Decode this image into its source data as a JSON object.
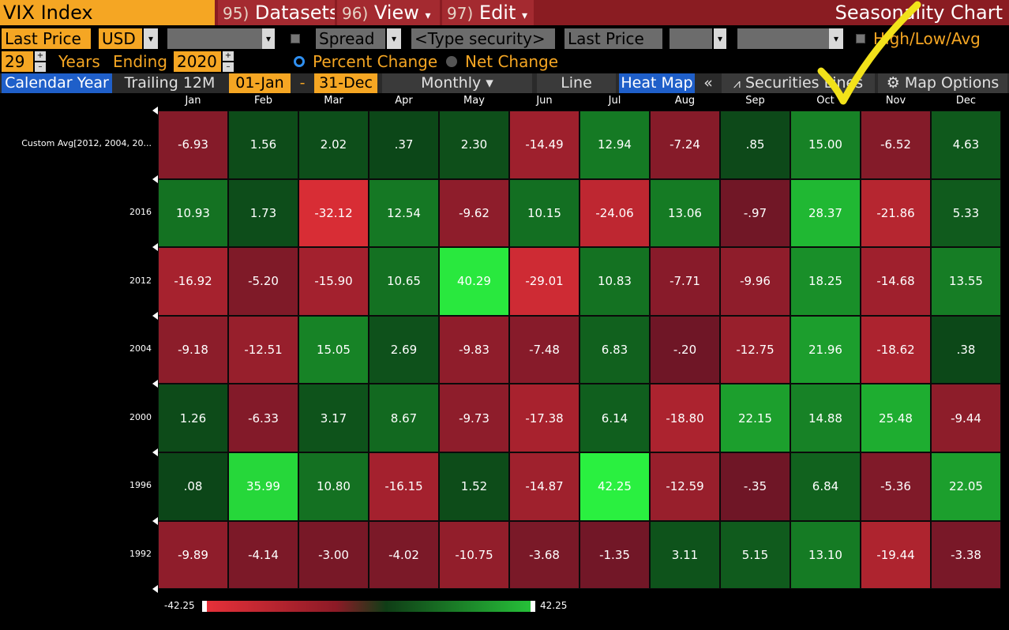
{
  "header": {
    "security": "VIX Index",
    "menus": [
      {
        "num": "95)",
        "label": "Datasets",
        "chevron": ""
      },
      {
        "num": "96)",
        "label": "View",
        "chevron": "▾"
      },
      {
        "num": "97)",
        "label": "Edit",
        "chevron": "▾"
      }
    ],
    "chart_title": "Seasonality Chart"
  },
  "row2": {
    "field1": "Last Price",
    "currency": "USD",
    "spread": "Spread",
    "type_security": "<Type security>",
    "field2": "Last Price",
    "hla_label": "High/Low/Avg",
    "dd_glyph": "▾"
  },
  "row3": {
    "years": "29",
    "years_label": "Years",
    "ending_label": "Ending",
    "end_year": "2020",
    "percent_change": "Percent Change",
    "net_change": "Net Change",
    "spin_up": "+",
    "spin_down": "–"
  },
  "toolbar": {
    "calendar_year": "Calendar Year",
    "trailing": "Trailing 12M",
    "start_date": "01-Jan",
    "dash": "-",
    "end_date": "31-Dec",
    "period": "Monthly ▾",
    "line": "Line",
    "heat_map": "Heat Map",
    "collapse": "«",
    "securities_lines": "Securities Lines",
    "map_options": "Map Options",
    "lines_icon": "⩘",
    "gear_icon": "⚙"
  },
  "chart_data": {
    "type": "heatmap",
    "categories": [
      "Jan",
      "Feb",
      "Mar",
      "Apr",
      "May",
      "Jun",
      "Jul",
      "Aug",
      "Sep",
      "Oct",
      "Nov",
      "Dec"
    ],
    "rows": [
      {
        "label": "Custom Avg[2012, 2004, 20...",
        "values": [
          "-6.93",
          "1.56",
          "2.02",
          ".37",
          "2.30",
          "-14.49",
          "12.94",
          "-7.24",
          ".85",
          "15.00",
          "-6.52",
          "4.63"
        ]
      },
      {
        "label": "2016",
        "values": [
          "10.93",
          "1.73",
          "-32.12",
          "12.54",
          "-9.62",
          "10.15",
          "-24.06",
          "13.06",
          "-.97",
          "28.37",
          "-21.86",
          "5.33"
        ]
      },
      {
        "label": "2012",
        "values": [
          "-16.92",
          "-5.20",
          "-15.90",
          "10.65",
          "40.29",
          "-29.01",
          "10.83",
          "-7.71",
          "-9.96",
          "18.25",
          "-14.68",
          "13.55"
        ]
      },
      {
        "label": "2004",
        "values": [
          "-9.18",
          "-12.51",
          "15.05",
          "2.69",
          "-9.83",
          "-7.48",
          "6.83",
          "-.20",
          "-12.75",
          "21.96",
          "-18.62",
          ".38"
        ]
      },
      {
        "label": "2000",
        "values": [
          "1.26",
          "-6.33",
          "3.17",
          "8.67",
          "-9.73",
          "-17.38",
          "6.14",
          "-18.80",
          "22.15",
          "14.88",
          "25.48",
          "-9.44"
        ]
      },
      {
        "label": "1996",
        "values": [
          ".08",
          "35.99",
          "10.80",
          "-16.15",
          "1.52",
          "-14.87",
          "42.25",
          "-12.59",
          "-.35",
          "6.84",
          "-5.36",
          "22.05"
        ]
      },
      {
        "label": "1992",
        "values": [
          "-9.89",
          "-4.14",
          "-3.00",
          "-4.02",
          "-10.75",
          "-3.68",
          "-1.35",
          "3.11",
          "5.15",
          "13.10",
          "-19.44",
          "-3.38"
        ]
      }
    ],
    "legend_min": "-42.25",
    "legend_max": "42.25",
    "range": [
      -42.25,
      42.25
    ]
  },
  "colors": {
    "accent_orange": "#f5a623",
    "header_red": "#8a1c22",
    "active_blue": "#1f5fc9",
    "annotation_yellow": "#f2e21a"
  }
}
